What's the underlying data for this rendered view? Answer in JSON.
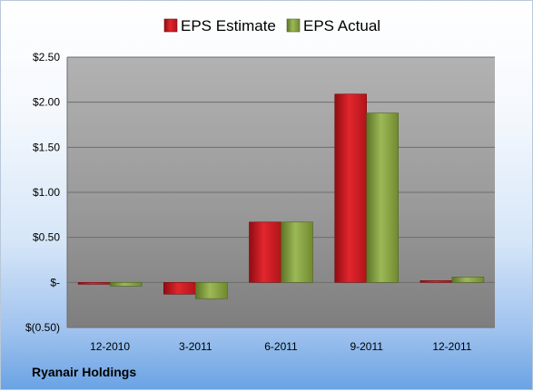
{
  "chart_data": {
    "type": "bar",
    "categories": [
      "12-2010",
      "3-2011",
      "6-2011",
      "9-2011",
      "12-2011"
    ],
    "series": [
      {
        "name": "EPS Estimate",
        "color": "#c0141b",
        "values": [
          -0.02,
          -0.13,
          0.67,
          2.09,
          0.02
        ]
      },
      {
        "name": "EPS Actual",
        "color": "#7f9a3a",
        "values": [
          -0.04,
          -0.18,
          0.67,
          1.88,
          0.06
        ]
      }
    ],
    "ylim": [
      -0.5,
      2.5
    ],
    "yticks": [
      {
        "value": 2.5,
        "label": "$2.50"
      },
      {
        "value": 2.0,
        "label": "$2.00"
      },
      {
        "value": 1.5,
        "label": "$1.50"
      },
      {
        "value": 1.0,
        "label": "$1.00"
      },
      {
        "value": 0.5,
        "label": "$0.50"
      },
      {
        "value": 0.0,
        "label": "$-"
      },
      {
        "value": -0.5,
        "label": "$(0.50)"
      }
    ],
    "grid": true,
    "legend_position": "top-center"
  },
  "company": "Ryanair Holdings"
}
